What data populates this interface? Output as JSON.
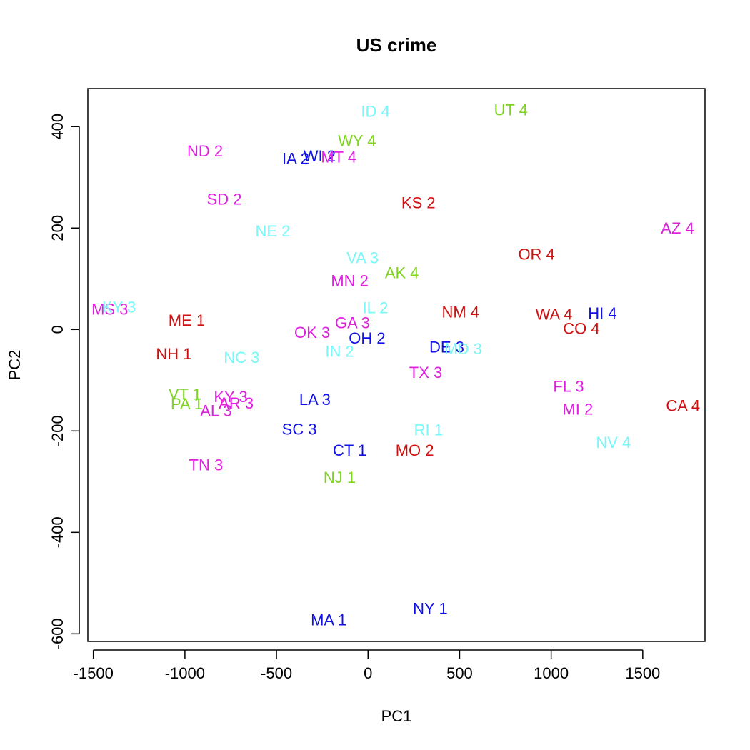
{
  "chart_data": {
    "type": "scatter",
    "title": "US crime",
    "xlabel": "PC1",
    "ylabel": "PC2",
    "xlim": [
      -1530,
      1840
    ],
    "ylim": [
      -615,
      475
    ],
    "xticks": [
      -1500,
      -1000,
      -500,
      0,
      500,
      1000,
      1500
    ],
    "yticks": [
      -600,
      -400,
      -200,
      0,
      200,
      400
    ],
    "grid": false,
    "legend": "none",
    "colors": {
      "1": "#7ED321",
      "2": "#D01010",
      "3": "#1010E8",
      "4": "#78F8F8",
      "5": "#E020E0"
    },
    "points": [
      {
        "label": "ID 4",
        "x": 40,
        "y": 430,
        "color": "#78F8F8"
      },
      {
        "label": "UT 4",
        "x": 780,
        "y": 433,
        "color": "#7ED321"
      },
      {
        "label": "WY 4",
        "x": -60,
        "y": 372,
        "color": "#7ED321"
      },
      {
        "label": "ND 2",
        "x": -890,
        "y": 352,
        "color": "#E020E0"
      },
      {
        "label": "IA 2",
        "x": -395,
        "y": 337,
        "color": "#1010E8"
      },
      {
        "label": "WI 2",
        "x": -265,
        "y": 342,
        "color": "#1010E8"
      },
      {
        "label": "MT 4",
        "x": -160,
        "y": 340,
        "color": "#E020E0"
      },
      {
        "label": "SD 2",
        "x": -785,
        "y": 257,
        "color": "#E020E0"
      },
      {
        "label": "KS 2",
        "x": 275,
        "y": 250,
        "color": "#D01010"
      },
      {
        "label": "NE 2",
        "x": -520,
        "y": 194,
        "color": "#78F8F8"
      },
      {
        "label": "AZ 4",
        "x": 1690,
        "y": 200,
        "color": "#E020E0"
      },
      {
        "label": "VA 3",
        "x": -30,
        "y": 141,
        "color": "#78F8F8"
      },
      {
        "label": "OR 4",
        "x": 920,
        "y": 148,
        "color": "#D01010"
      },
      {
        "label": "AK 4",
        "x": 185,
        "y": 112,
        "color": "#7ED321"
      },
      {
        "label": "MN 2",
        "x": -100,
        "y": 96,
        "color": "#E020E0"
      },
      {
        "label": "MS 3",
        "x": -1410,
        "y": 40,
        "color": "#E020E0"
      },
      {
        "label": "KY 3",
        "x": -1360,
        "y": 44,
        "color": "#78F8F8"
      },
      {
        "label": "IL 2",
        "x": 40,
        "y": 43,
        "color": "#78F8F8"
      },
      {
        "label": "NM 4",
        "x": 505,
        "y": 34,
        "color": "#D01010"
      },
      {
        "label": "WA 4",
        "x": 1015,
        "y": 30,
        "color": "#D01010"
      },
      {
        "label": "HI 4",
        "x": 1280,
        "y": 32,
        "color": "#1010E8"
      },
      {
        "label": "ME 1",
        "x": -990,
        "y": 18,
        "color": "#D01010"
      },
      {
        "label": "GA 3",
        "x": -85,
        "y": 13,
        "color": "#E020E0"
      },
      {
        "label": "CO 4",
        "x": 1165,
        "y": 2,
        "color": "#D01010"
      },
      {
        "label": "OK 3",
        "x": -305,
        "y": -6,
        "color": "#E020E0"
      },
      {
        "label": "OH 2",
        "x": -5,
        "y": -17,
        "color": "#1010E8"
      },
      {
        "label": "DE 3",
        "x": 430,
        "y": -35,
        "color": "#1010E8"
      },
      {
        "label": "MD 3",
        "x": 520,
        "y": -38,
        "color": "#78F8F8"
      },
      {
        "label": "NH 1",
        "x": -1060,
        "y": -48,
        "color": "#D01010"
      },
      {
        "label": "IN 2",
        "x": -155,
        "y": -43,
        "color": "#78F8F8"
      },
      {
        "label": "NC 3",
        "x": -690,
        "y": -55,
        "color": "#78F8F8"
      },
      {
        "label": "TX 3",
        "x": 315,
        "y": -85,
        "color": "#E020E0"
      },
      {
        "label": "FL 3",
        "x": 1095,
        "y": -112,
        "color": "#E020E0"
      },
      {
        "label": "VT 1",
        "x": -1000,
        "y": -128,
        "color": "#7ED321"
      },
      {
        "label": "KY 3",
        "x": -750,
        "y": -133,
        "color": "#E020E0"
      },
      {
        "label": "PA 1",
        "x": -990,
        "y": -147,
        "color": "#7ED321"
      },
      {
        "label": "AR 3",
        "x": -720,
        "y": -145,
        "color": "#E020E0"
      },
      {
        "label": "LA 3",
        "x": -290,
        "y": -138,
        "color": "#1010E8"
      },
      {
        "label": "AL 3",
        "x": -830,
        "y": -160,
        "color": "#E020E0"
      },
      {
        "label": "MI 2",
        "x": 1145,
        "y": -157,
        "color": "#E020E0"
      },
      {
        "label": "CA 4",
        "x": 1720,
        "y": -150,
        "color": "#D01010"
      },
      {
        "label": "SC 3",
        "x": -375,
        "y": -197,
        "color": "#1010E8"
      },
      {
        "label": "RI 1",
        "x": 330,
        "y": -198,
        "color": "#78F8F8"
      },
      {
        "label": "NV 4",
        "x": 1340,
        "y": -223,
        "color": "#78F8F8"
      },
      {
        "label": "CT 1",
        "x": -100,
        "y": -238,
        "color": "#1010E8"
      },
      {
        "label": "MO 2",
        "x": 255,
        "y": -238,
        "color": "#D01010"
      },
      {
        "label": "TN 3",
        "x": -885,
        "y": -267,
        "color": "#E020E0"
      },
      {
        "label": "NJ 1",
        "x": -155,
        "y": -292,
        "color": "#7ED321"
      },
      {
        "label": "NY 1",
        "x": 340,
        "y": -550,
        "color": "#1010E8"
      },
      {
        "label": "MA 1",
        "x": -215,
        "y": -573,
        "color": "#1010E8"
      }
    ]
  }
}
